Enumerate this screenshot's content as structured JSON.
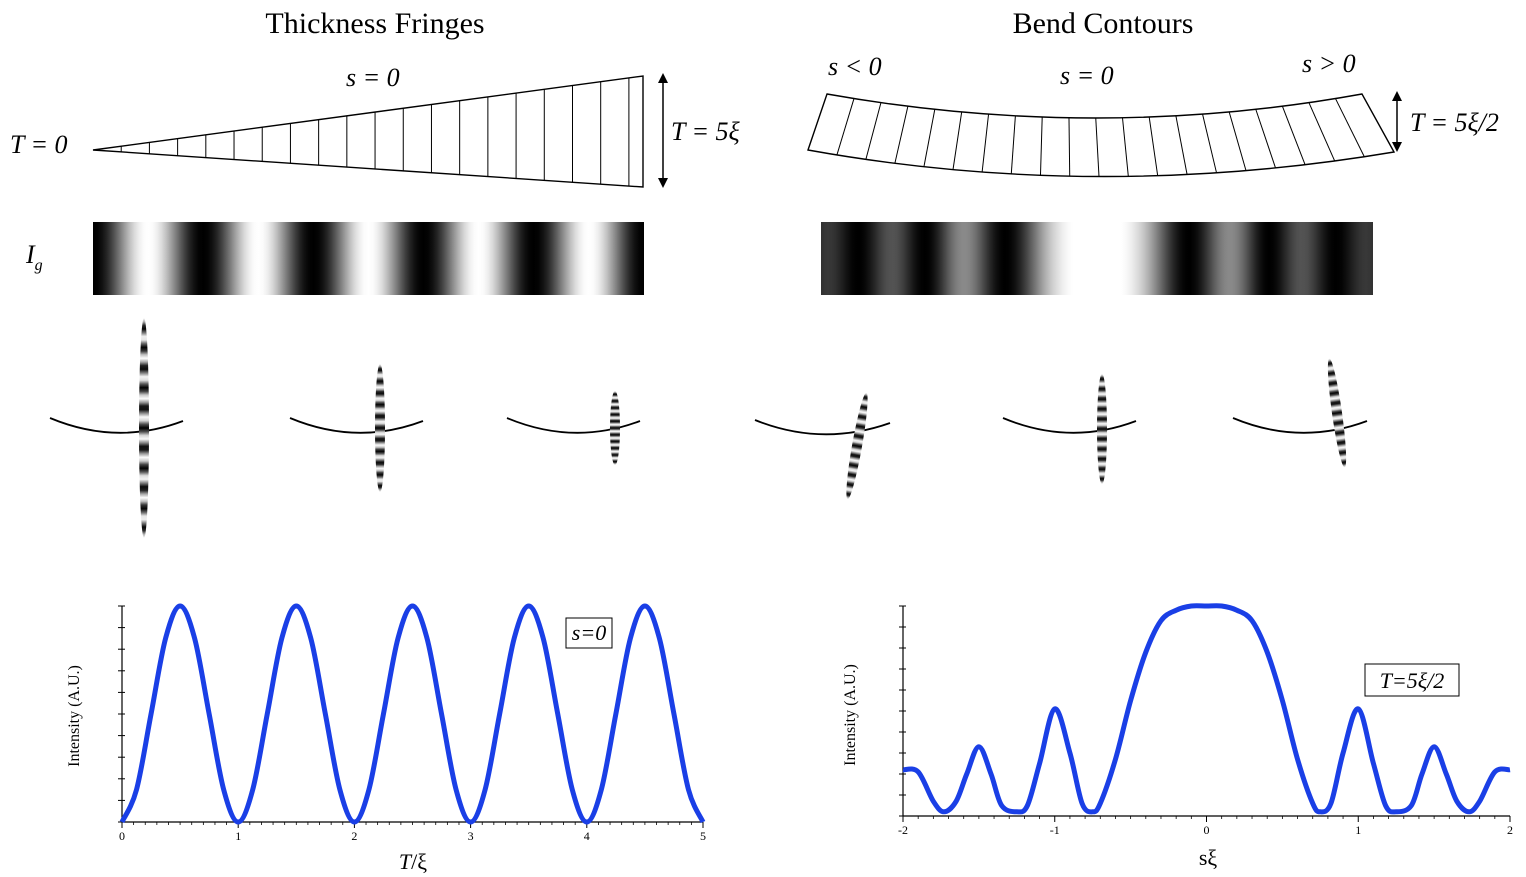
{
  "titles": {
    "left": "Thickness Fringes",
    "right": "Bend Contours"
  },
  "wedge": {
    "t0_label": "T = 0",
    "s_label": "s = 0",
    "thickness_label": "T = 5ξ"
  },
  "bend": {
    "s_neg_label": "s < 0",
    "s_zero_label": "s = 0",
    "s_pos_label": "s > 0",
    "thickness_label": "T = 5ξ/2"
  },
  "intensity_label": "I",
  "intensity_subscript": "g",
  "colors": {
    "curve": "#1a3fe6",
    "line": "#000000"
  },
  "chart_data": [
    {
      "type": "line",
      "x_label_main": "T",
      "x_label_rest": "/ξ",
      "ylabel": "Intensity (A.U.)",
      "annotation": "s=0",
      "xlim": [
        0,
        5
      ],
      "ylim": [
        0,
        1
      ],
      "x_ticks": [
        "0",
        "1",
        "2",
        "3",
        "4",
        "5"
      ],
      "series": [
        {
          "x": [
            0,
            0.125,
            0.25,
            0.375,
            0.5,
            0.625,
            0.75,
            0.875,
            1,
            1.125,
            1.25,
            1.375,
            1.5,
            1.625,
            1.75,
            1.875,
            2,
            2.125,
            2.25,
            2.375,
            2.5,
            2.625,
            2.75,
            2.875,
            3,
            3.125,
            3.25,
            3.375,
            3.5,
            3.625,
            3.75,
            3.875,
            4,
            4.125,
            4.25,
            4.375,
            4.5,
            4.625,
            4.75,
            4.875,
            5
          ],
          "y": [
            0,
            0.15,
            0.5,
            0.85,
            1,
            0.85,
            0.5,
            0.15,
            0,
            0.15,
            0.5,
            0.85,
            1,
            0.85,
            0.5,
            0.15,
            0,
            0.15,
            0.5,
            0.85,
            1,
            0.85,
            0.5,
            0.15,
            0,
            0.15,
            0.5,
            0.85,
            1,
            0.85,
            0.5,
            0.15,
            0,
            0.15,
            0.5,
            0.85,
            1,
            0.85,
            0.5,
            0.15,
            0
          ]
        }
      ]
    },
    {
      "type": "line",
      "x_label_main": "sξ",
      "x_label_rest": "",
      "ylabel": "Intensity (A.U.)",
      "annotation": "T=5ξ/2",
      "xlim": [
        -2,
        2
      ],
      "ylim": [
        0,
        1
      ],
      "x_ticks": [
        "-2",
        "-1",
        "0",
        "1",
        "2"
      ],
      "series": [
        {
          "x": [
            -2,
            -1.9,
            -1.8,
            -1.73,
            -1.65,
            -1.58,
            -1.5,
            -1.42,
            -1.35,
            -1.25,
            -1.18,
            -1.1,
            -1.0,
            -0.9,
            -0.82,
            -0.75,
            -0.7,
            -0.6,
            -0.5,
            -0.4,
            -0.3,
            -0.2,
            -0.1,
            0,
            0.1,
            0.2,
            0.3,
            0.4,
            0.5,
            0.6,
            0.7,
            0.75,
            0.82,
            0.9,
            1.0,
            1.1,
            1.18,
            1.25,
            1.35,
            1.42,
            1.5,
            1.58,
            1.65,
            1.73,
            1.8,
            1.9,
            2
          ],
          "y": [
            0.22,
            0.21,
            0.07,
            0.02,
            0.07,
            0.2,
            0.33,
            0.2,
            0.05,
            0.02,
            0.05,
            0.25,
            0.51,
            0.3,
            0.06,
            0.02,
            0.06,
            0.27,
            0.55,
            0.78,
            0.93,
            0.98,
            1.0,
            1.0,
            1.0,
            0.98,
            0.93,
            0.78,
            0.55,
            0.27,
            0.06,
            0.02,
            0.06,
            0.3,
            0.51,
            0.25,
            0.05,
            0.02,
            0.05,
            0.2,
            0.33,
            0.2,
            0.07,
            0.02,
            0.07,
            0.21,
            0.22
          ]
        }
      ]
    }
  ]
}
